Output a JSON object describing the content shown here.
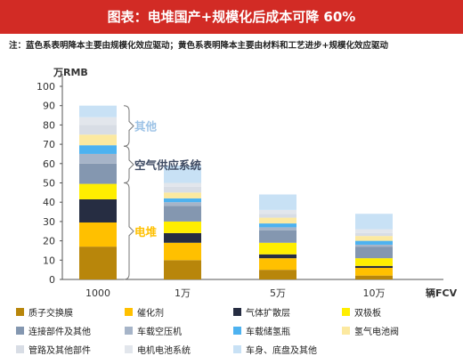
{
  "header": {
    "title": "图表：电堆国产+规模化后成本可降 60%",
    "note": "注：蓝色系表明降本主要由规模化效应驱动；黄色系表明降本主要由材料和工艺进步+规模化效应驱动"
  },
  "chart_data": {
    "type": "bar",
    "stacked": true,
    "ylabel": "万RMB",
    "xlabel": "辆FCV",
    "ylim": [
      0,
      100
    ],
    "yticks": [
      0,
      10,
      20,
      30,
      40,
      50,
      60,
      70,
      80,
      90,
      100
    ],
    "categories": [
      "1000",
      "1万",
      "5万",
      "10万"
    ],
    "series": [
      {
        "name": "质子交换膜",
        "color": "#b8860b",
        "values": [
          17,
          10,
          5,
          2
        ]
      },
      {
        "name": "催化剂",
        "color": "#ffc000",
        "values": [
          12.5,
          9,
          6,
          4
        ]
      },
      {
        "name": "气体扩散层",
        "color": "#262d42",
        "values": [
          12,
          5,
          2,
          1
        ]
      },
      {
        "name": "双极板",
        "color": "#ffee00",
        "values": [
          8,
          6,
          6,
          4
        ]
      },
      {
        "name": "连接部件及其他",
        "color": "#8497b0",
        "values": [
          10.5,
          8,
          6.5,
          6
        ]
      },
      {
        "name": "车载空压机",
        "color": "#a6b4c8",
        "values": [
          5,
          2,
          1.5,
          1
        ]
      },
      {
        "name": "车载储氢瓶",
        "color": "#4db2f0",
        "values": [
          4.5,
          2,
          2,
          2
        ]
      },
      {
        "name": "氢气电池阀",
        "color": "#fce9a0",
        "values": [
          5.5,
          3,
          3,
          2.5
        ]
      },
      {
        "name": "管路及其他部件",
        "color": "#d8dde5",
        "values": [
          5,
          3,
          2,
          1.5
        ]
      },
      {
        "name": "电机电池系统",
        "color": "#e2e6ec",
        "values": [
          4,
          2,
          2,
          2
        ]
      },
      {
        "name": "车身、底盘及其他",
        "color": "#c8e1f5",
        "values": [
          6,
          9,
          8,
          8
        ]
      }
    ],
    "annotations": [
      {
        "text": "其他",
        "color": "#9dc3e6"
      },
      {
        "text": "空气供应系统",
        "color": "#3f4b63"
      },
      {
        "text": "电堆",
        "color": "#ffc000"
      }
    ]
  }
}
